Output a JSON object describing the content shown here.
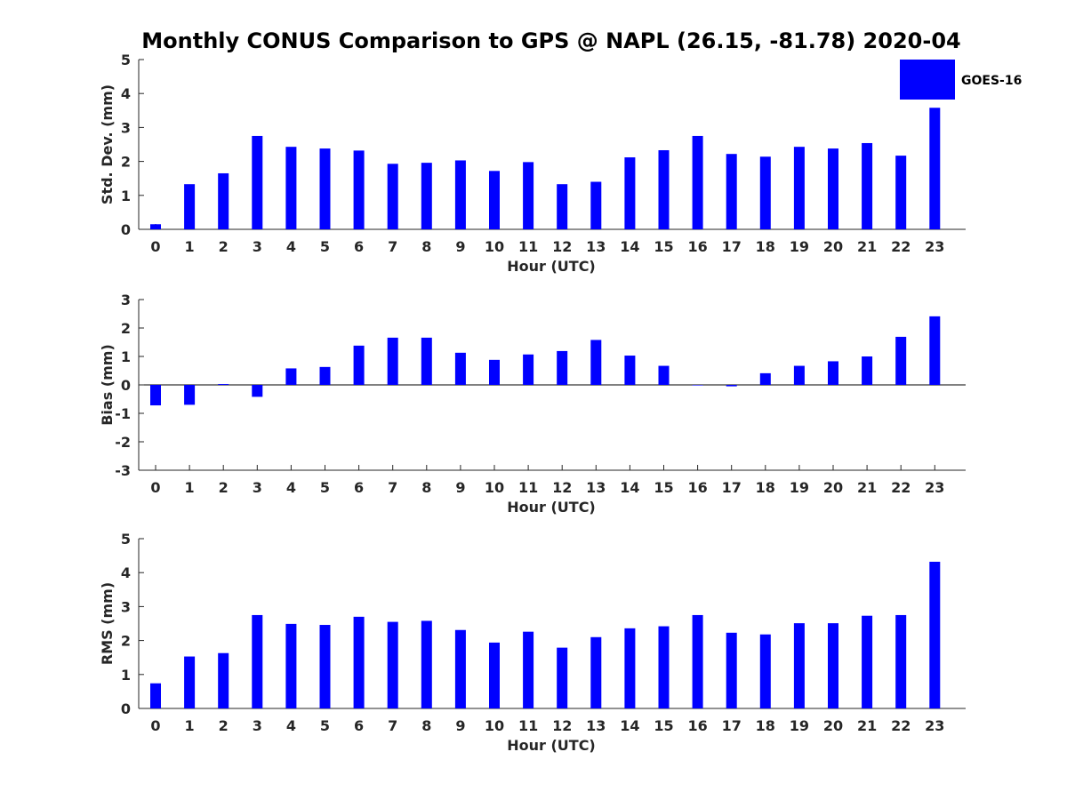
{
  "title": "Monthly CONUS Comparison to GPS @ NAPL (26.15, -81.78) 2020-04",
  "legend": {
    "label": "GOES-16",
    "placement": "top-right",
    "color": "#0000ff"
  },
  "colors": {
    "bar": "#0000ff",
    "axis": "#262626",
    "background": "#ffffff"
  },
  "chart_data": [
    {
      "type": "bar",
      "xlabel": "Hour (UTC)",
      "ylabel": "Std. Dev. (mm)",
      "ylim": [
        0,
        5
      ],
      "yticks": [
        0,
        1,
        2,
        3,
        4,
        5
      ],
      "grid": false,
      "categories": [
        "0",
        "1",
        "2",
        "3",
        "4",
        "5",
        "6",
        "7",
        "8",
        "9",
        "10",
        "11",
        "12",
        "13",
        "14",
        "15",
        "16",
        "17",
        "18",
        "19",
        "20",
        "21",
        "22",
        "23"
      ],
      "series": [
        {
          "name": "GOES-16",
          "values": [
            0.15,
            1.33,
            1.65,
            2.75,
            2.43,
            2.38,
            2.32,
            1.93,
            1.96,
            2.03,
            1.72,
            1.98,
            1.33,
            1.4,
            2.12,
            2.33,
            2.75,
            2.22,
            2.14,
            2.43,
            2.38,
            2.54,
            2.17,
            3.58
          ]
        }
      ]
    },
    {
      "type": "bar",
      "xlabel": "Hour (UTC)",
      "ylabel": "Bias (mm)",
      "ylim": [
        -3,
        3
      ],
      "yticks": [
        -3,
        -2,
        -1,
        0,
        1,
        2,
        3
      ],
      "grid": false,
      "categories": [
        "0",
        "1",
        "2",
        "3",
        "4",
        "5",
        "6",
        "7",
        "8",
        "9",
        "10",
        "11",
        "12",
        "13",
        "14",
        "15",
        "16",
        "17",
        "18",
        "19",
        "20",
        "21",
        "22",
        "23"
      ],
      "series": [
        {
          "name": "GOES-16",
          "values": [
            -0.72,
            -0.7,
            0.03,
            -0.42,
            0.58,
            0.63,
            1.38,
            1.66,
            1.66,
            1.13,
            0.88,
            1.07,
            1.19,
            1.58,
            1.03,
            0.67,
            0.0,
            -0.05,
            0.41,
            0.67,
            0.83,
            1.0,
            1.69,
            2.41
          ]
        }
      ]
    },
    {
      "type": "bar",
      "xlabel": "Hour (UTC)",
      "ylabel": "RMS (mm)",
      "ylim": [
        0,
        5
      ],
      "yticks": [
        0,
        1,
        2,
        3,
        4,
        5
      ],
      "grid": false,
      "categories": [
        "0",
        "1",
        "2",
        "3",
        "4",
        "5",
        "6",
        "7",
        "8",
        "9",
        "10",
        "11",
        "12",
        "13",
        "14",
        "15",
        "16",
        "17",
        "18",
        "19",
        "20",
        "21",
        "22",
        "23"
      ],
      "series": [
        {
          "name": "GOES-16",
          "values": [
            0.74,
            1.53,
            1.63,
            2.75,
            2.49,
            2.46,
            2.7,
            2.55,
            2.58,
            2.31,
            1.94,
            2.26,
            1.79,
            2.1,
            2.36,
            2.42,
            2.75,
            2.23,
            2.18,
            2.51,
            2.51,
            2.73,
            2.75,
            4.32
          ]
        }
      ]
    }
  ]
}
